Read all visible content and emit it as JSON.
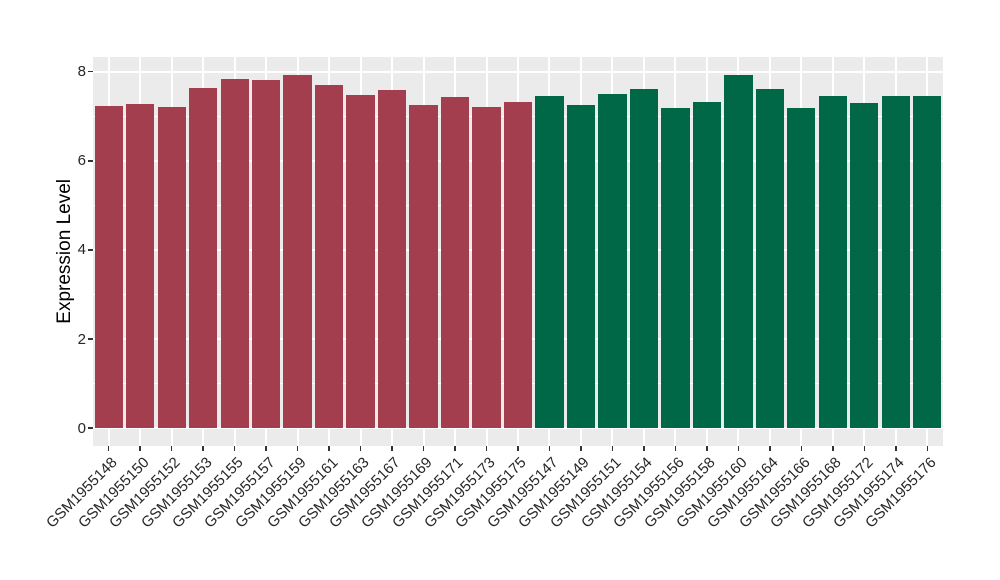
{
  "chart_data": {
    "type": "bar",
    "title": "",
    "xlabel": "",
    "ylabel": "Expression Level",
    "ylim": [
      -0.4,
      8.33
    ],
    "yticks_major": [
      0,
      2,
      4,
      6,
      8
    ],
    "yticks_minor": [
      1,
      3,
      5,
      7
    ],
    "grid": true,
    "legend": "none",
    "panel_bg_color": "#EBEBEB",
    "grid_color": "#FFFFFF",
    "axis_text_color": "#262626",
    "group_colors": {
      "group1": "#A33E4F",
      "group2": "#006847"
    },
    "bars": [
      {
        "label": "GSM1955148",
        "value": 7.24,
        "group": "group1",
        "color": "#A33E4F"
      },
      {
        "label": "GSM1955150",
        "value": 7.27,
        "group": "group1",
        "color": "#A33E4F"
      },
      {
        "label": "GSM1955152",
        "value": 7.2,
        "group": "group1",
        "color": "#A33E4F"
      },
      {
        "label": "GSM1955153",
        "value": 7.64,
        "group": "group1",
        "color": "#A33E4F"
      },
      {
        "label": "GSM1955155",
        "value": 7.83,
        "group": "group1",
        "color": "#A33E4F"
      },
      {
        "label": "GSM1955157",
        "value": 7.81,
        "group": "group1",
        "color": "#A33E4F"
      },
      {
        "label": "GSM1955159",
        "value": 7.92,
        "group": "group1",
        "color": "#A33E4F"
      },
      {
        "label": "GSM1955161",
        "value": 7.7,
        "group": "group1",
        "color": "#A33E4F"
      },
      {
        "label": "GSM1955163",
        "value": 7.48,
        "group": "group1",
        "color": "#A33E4F"
      },
      {
        "label": "GSM1955167",
        "value": 7.6,
        "group": "group1",
        "color": "#A33E4F"
      },
      {
        "label": "GSM1955169",
        "value": 7.26,
        "group": "group1",
        "color": "#A33E4F"
      },
      {
        "label": "GSM1955171",
        "value": 7.43,
        "group": "group1",
        "color": "#A33E4F"
      },
      {
        "label": "GSM1955173",
        "value": 7.2,
        "group": "group1",
        "color": "#A33E4F"
      },
      {
        "label": "GSM1955175",
        "value": 7.33,
        "group": "group1",
        "color": "#A33E4F"
      },
      {
        "label": "GSM1955147",
        "value": 7.46,
        "group": "group2",
        "color": "#006847"
      },
      {
        "label": "GSM1955149",
        "value": 7.26,
        "group": "group2",
        "color": "#006847"
      },
      {
        "label": "GSM1955151",
        "value": 7.51,
        "group": "group2",
        "color": "#006847"
      },
      {
        "label": "GSM1955154",
        "value": 7.61,
        "group": "group2",
        "color": "#006847"
      },
      {
        "label": "GSM1955156",
        "value": 7.18,
        "group": "group2",
        "color": "#006847"
      },
      {
        "label": "GSM1955158",
        "value": 7.32,
        "group": "group2",
        "color": "#006847"
      },
      {
        "label": "GSM1955160",
        "value": 7.93,
        "group": "group2",
        "color": "#006847"
      },
      {
        "label": "GSM1955164",
        "value": 7.61,
        "group": "group2",
        "color": "#006847"
      },
      {
        "label": "GSM1955166",
        "value": 7.19,
        "group": "group2",
        "color": "#006847"
      },
      {
        "label": "GSM1955168",
        "value": 7.45,
        "group": "group2",
        "color": "#006847"
      },
      {
        "label": "GSM1955172",
        "value": 7.29,
        "group": "group2",
        "color": "#006847"
      },
      {
        "label": "GSM1955174",
        "value": 7.46,
        "group": "group2",
        "color": "#006847"
      },
      {
        "label": "GSM1955176",
        "value": 7.46,
        "group": "group2",
        "color": "#006847"
      }
    ]
  }
}
